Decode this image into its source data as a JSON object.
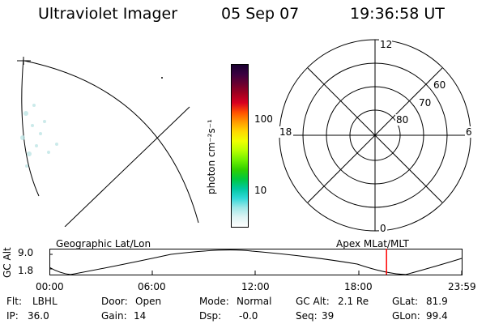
{
  "header": {
    "title": "Ultraviolet Imager",
    "date": "05 Sep 07",
    "time": "19:36:58 UT"
  },
  "colorbar": {
    "unit_label": "photon cm⁻²s⁻¹",
    "ticks": [
      {
        "value": 100,
        "label": "100"
      },
      {
        "value": 10,
        "label": "10"
      }
    ],
    "colors": [
      "#1a0030",
      "#3a0040",
      "#6a0030",
      "#a00020",
      "#d80020",
      "#ff5000",
      "#ff9a00",
      "#ffd800",
      "#f0ff00",
      "#b8ff00",
      "#70f000",
      "#30d000",
      "#00c840",
      "#00c8a0",
      "#30d8d8",
      "#a0e8e8",
      "#dff4f4",
      "#ffffff"
    ]
  },
  "polar": {
    "mlt_labels": {
      "top": "12",
      "bottom": "0",
      "left": "18",
      "right": "6"
    },
    "lat_labels": [
      "60",
      "70",
      "80"
    ]
  },
  "timeline": {
    "left_title": "Geographic Lat/Lon",
    "right_title": "Apex MLat/MLT",
    "y_axis_label": "GC Alt",
    "y_ticks": [
      "9.0",
      "1.8"
    ],
    "x_ticks": [
      "00:00",
      "06:00",
      "12:00",
      "18:00",
      "23:59"
    ],
    "current_time_fraction": 0.8173,
    "marker_color": "#ff0000"
  },
  "status": {
    "col1": [
      {
        "key": "Flt:",
        "val": "LBHL"
      },
      {
        "key": "IP:",
        "val": "36.0"
      }
    ],
    "col2": [
      {
        "key": "Door:",
        "val": "Open"
      },
      {
        "key": "Gain:",
        "val": "14"
      }
    ],
    "col3": [
      {
        "key": "Mode:",
        "val": "Normal"
      },
      {
        "key": "Dsp:",
        "val": "-0.0"
      }
    ],
    "col4": [
      {
        "key": "GC Alt:",
        "val": "2.1 Re"
      },
      {
        "key": "Seq:",
        "val": "39"
      }
    ],
    "col5": [
      {
        "key": "GLat:",
        "val": "81.9"
      },
      {
        "key": "GLon:",
        "val": "99.4"
      }
    ]
  }
}
